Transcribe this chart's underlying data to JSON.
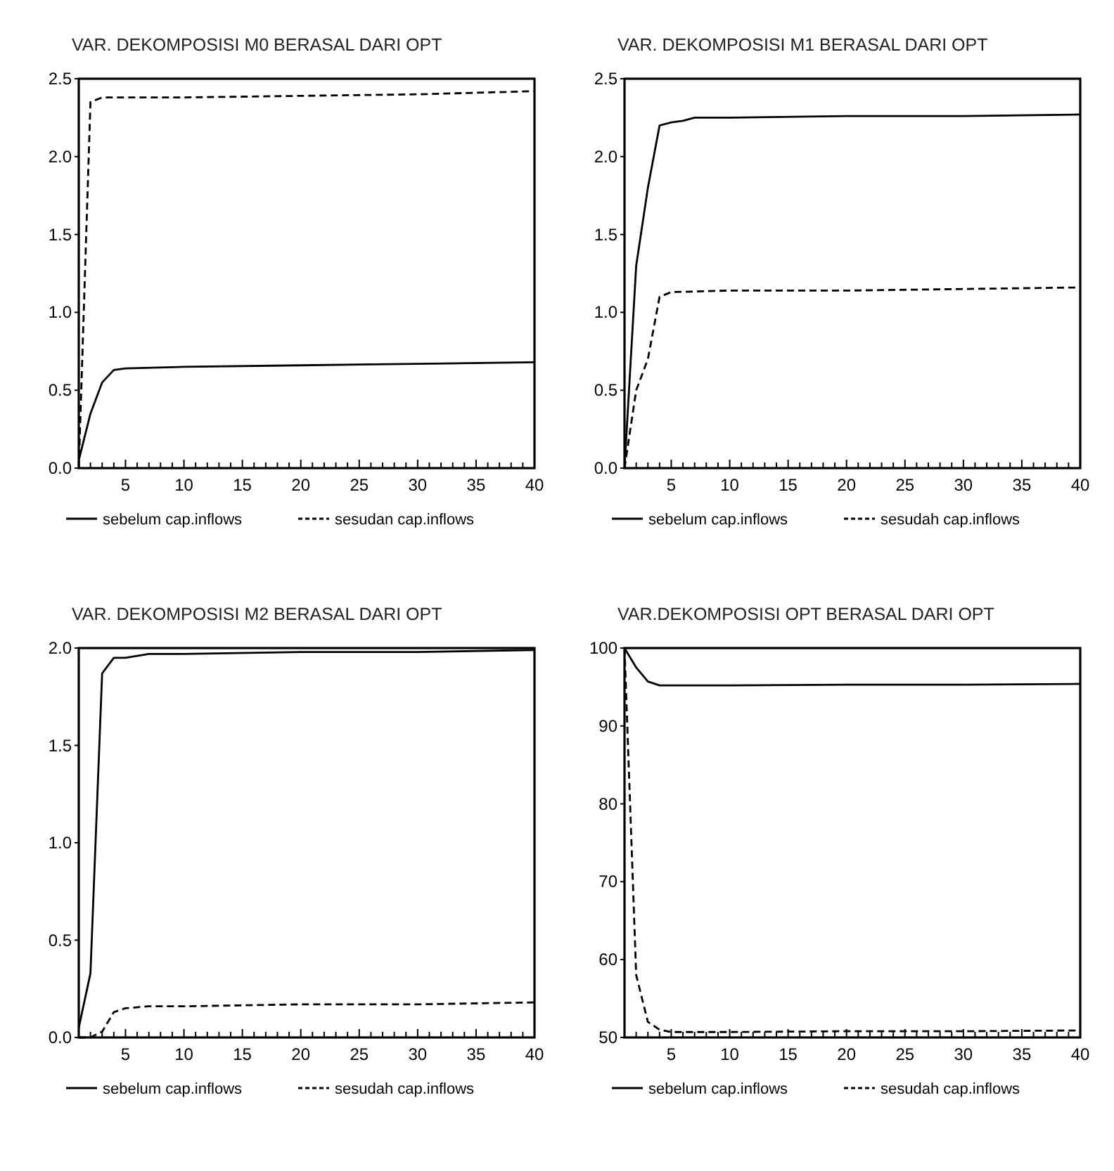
{
  "chart_data": [
    {
      "type": "line",
      "title": "VAR. DEKOMPOSISI M0 BERASAL DARI OPT",
      "xlim": [
        1,
        40
      ],
      "ylim": [
        0,
        2.5
      ],
      "yticks": [
        {
          "value": 0,
          "label": "0.0"
        },
        0.5,
        {
          "value": 1,
          "label": "1.0"
        },
        1.5,
        {
          "value": 2,
          "label": "2.0"
        },
        2.5
      ],
      "xticks": [
        {
          "value": 2,
          "label": null
        },
        {
          "value": 3,
          "label": null
        },
        {
          "value": 4,
          "label": null
        },
        5,
        {
          "value": 6,
          "label": null
        },
        {
          "value": 7,
          "label": null
        },
        {
          "value": 8,
          "label": null
        },
        {
          "value": 9,
          "label": null
        },
        10,
        {
          "value": 11,
          "label": null
        },
        {
          "value": 12,
          "label": null
        },
        {
          "value": 13,
          "label": null
        },
        {
          "value": 14,
          "label": null
        },
        15,
        {
          "value": 16,
          "label": null
        },
        {
          "value": 17,
          "label": null
        },
        {
          "value": 18,
          "label": null
        },
        {
          "value": 19,
          "label": null
        },
        20,
        {
          "value": 21,
          "label": null
        },
        {
          "value": 22,
          "label": null
        },
        {
          "value": 23,
          "label": null
        },
        {
          "value": 24,
          "label": null
        },
        25,
        {
          "value": 26,
          "label": null
        },
        {
          "value": 27,
          "label": null
        },
        {
          "value": 28,
          "label": null
        },
        {
          "value": 29,
          "label": null
        },
        30,
        {
          "value": 31,
          "label": null
        },
        {
          "value": 32,
          "label": null
        },
        {
          "value": 33,
          "label": null
        },
        {
          "value": 34,
          "label": null
        },
        35,
        {
          "value": 36,
          "label": null
        },
        {
          "value": 37,
          "label": null
        },
        {
          "value": 38,
          "label": null
        },
        {
          "value": 39,
          "label": null
        },
        40
      ],
      "legend": "bottom",
      "grid": false,
      "series": [
        {
          "name": "sebelum cap.inflows",
          "color": "#000000",
          "line_style": "solid",
          "x": [
            1,
            2,
            3,
            4,
            5,
            10,
            20,
            30,
            40
          ],
          "values": [
            0.05,
            0.35,
            0.55,
            0.63,
            0.64,
            0.65,
            0.66,
            0.67,
            0.68
          ]
        },
        {
          "name": "sesudan cap.inflows",
          "color": "#000000",
          "line_style": "dashed",
          "x": [
            1,
            2,
            3,
            4,
            5,
            10,
            20,
            30,
            40
          ],
          "values": [
            0,
            2.35,
            2.38,
            2.38,
            2.38,
            2.38,
            2.39,
            2.4,
            2.42
          ]
        }
      ]
    },
    {
      "type": "line",
      "title": "VAR. DEKOMPOSISI M1 BERASAL DARI OPT",
      "xlim": [
        1,
        40
      ],
      "ylim": [
        0,
        2.5
      ],
      "yticks": [
        {
          "value": 0,
          "label": "0.0"
        },
        0.5,
        {
          "value": 1,
          "label": "1.0"
        },
        1.5,
        {
          "value": 2,
          "label": "2.0"
        },
        2.5
      ],
      "xticks": [
        {
          "value": 2,
          "label": null
        },
        {
          "value": 3,
          "label": null
        },
        {
          "value": 4,
          "label": null
        },
        5,
        {
          "value": 6,
          "label": null
        },
        {
          "value": 7,
          "label": null
        },
        {
          "value": 8,
          "label": null
        },
        {
          "value": 9,
          "label": null
        },
        10,
        {
          "value": 11,
          "label": null
        },
        {
          "value": 12,
          "label": null
        },
        {
          "value": 13,
          "label": null
        },
        {
          "value": 14,
          "label": null
        },
        15,
        {
          "value": 16,
          "label": null
        },
        {
          "value": 17,
          "label": null
        },
        {
          "value": 18,
          "label": null
        },
        {
          "value": 19,
          "label": null
        },
        20,
        {
          "value": 21,
          "label": null
        },
        {
          "value": 22,
          "label": null
        },
        {
          "value": 23,
          "label": null
        },
        {
          "value": 24,
          "label": null
        },
        25,
        {
          "value": 26,
          "label": null
        },
        {
          "value": 27,
          "label": null
        },
        {
          "value": 28,
          "label": null
        },
        {
          "value": 29,
          "label": null
        },
        30,
        {
          "value": 31,
          "label": null
        },
        {
          "value": 32,
          "label": null
        },
        {
          "value": 33,
          "label": null
        },
        {
          "value": 34,
          "label": null
        },
        35,
        {
          "value": 36,
          "label": null
        },
        {
          "value": 37,
          "label": null
        },
        {
          "value": 38,
          "label": null
        },
        {
          "value": 39,
          "label": null
        },
        40
      ],
      "legend": "bottom",
      "grid": false,
      "series": [
        {
          "name": "sebelum cap.inflows",
          "color": "#000000",
          "line_style": "solid",
          "x": [
            1,
            2,
            3,
            4,
            5,
            6,
            7,
            10,
            20,
            30,
            40
          ],
          "values": [
            0,
            1.3,
            1.8,
            2.2,
            2.22,
            2.23,
            2.25,
            2.25,
            2.26,
            2.26,
            2.27
          ]
        },
        {
          "name": "sesudah cap.inflows",
          "color": "#000000",
          "line_style": "dashed",
          "x": [
            1,
            2,
            3,
            4,
            5,
            10,
            20,
            30,
            40
          ],
          "values": [
            0,
            0.5,
            0.7,
            1.1,
            1.13,
            1.14,
            1.14,
            1.15,
            1.16
          ]
        }
      ]
    },
    {
      "type": "line",
      "title": "VAR. DEKOMPOSISI M2 BERASAL DARI OPT",
      "xlim": [
        1,
        40
      ],
      "ylim": [
        0,
        2
      ],
      "yticks": [
        {
          "value": 0,
          "label": "0.0"
        },
        0.5,
        {
          "value": 1,
          "label": "1.0"
        },
        1.5,
        {
          "value": 2,
          "label": "2.0"
        }
      ],
      "xticks": [
        {
          "value": 2,
          "label": null
        },
        {
          "value": 3,
          "label": null
        },
        {
          "value": 4,
          "label": null
        },
        5,
        {
          "value": 6,
          "label": null
        },
        {
          "value": 7,
          "label": null
        },
        {
          "value": 8,
          "label": null
        },
        {
          "value": 9,
          "label": null
        },
        10,
        {
          "value": 11,
          "label": null
        },
        {
          "value": 12,
          "label": null
        },
        {
          "value": 13,
          "label": null
        },
        {
          "value": 14,
          "label": null
        },
        15,
        {
          "value": 16,
          "label": null
        },
        {
          "value": 17,
          "label": null
        },
        {
          "value": 18,
          "label": null
        },
        {
          "value": 19,
          "label": null
        },
        20,
        {
          "value": 21,
          "label": null
        },
        {
          "value": 22,
          "label": null
        },
        {
          "value": 23,
          "label": null
        },
        {
          "value": 24,
          "label": null
        },
        25,
        {
          "value": 26,
          "label": null
        },
        {
          "value": 27,
          "label": null
        },
        {
          "value": 28,
          "label": null
        },
        {
          "value": 29,
          "label": null
        },
        30,
        {
          "value": 31,
          "label": null
        },
        {
          "value": 32,
          "label": null
        },
        {
          "value": 33,
          "label": null
        },
        {
          "value": 34,
          "label": null
        },
        35,
        {
          "value": 36,
          "label": null
        },
        {
          "value": 37,
          "label": null
        },
        {
          "value": 38,
          "label": null
        },
        {
          "value": 39,
          "label": null
        },
        40
      ],
      "legend": "bottom",
      "grid": false,
      "series": [
        {
          "name": "sebelum cap.inflows",
          "color": "#000000",
          "line_style": "solid",
          "x": [
            1,
            2,
            3,
            4,
            5,
            7,
            10,
            20,
            30,
            40
          ],
          "values": [
            0.05,
            0.33,
            1.87,
            1.95,
            1.95,
            1.97,
            1.97,
            1.98,
            1.98,
            1.99
          ]
        },
        {
          "name": "sesudah cap.inflows",
          "color": "#000000",
          "line_style": "dashed",
          "x": [
            1,
            2,
            3,
            4,
            5,
            7,
            10,
            20,
            30,
            40
          ],
          "values": [
            0,
            0,
            0.03,
            0.13,
            0.15,
            0.16,
            0.16,
            0.17,
            0.17,
            0.18
          ]
        }
      ]
    },
    {
      "type": "line",
      "title": "VAR.DEKOMPOSISI OPT BERASAL DARI OPT",
      "xlim": [
        1,
        40
      ],
      "ylim": [
        50,
        100
      ],
      "yticks": [
        50,
        60,
        70,
        80,
        90,
        100
      ],
      "xticks": [
        {
          "value": 2,
          "label": null
        },
        {
          "value": 3,
          "label": null
        },
        {
          "value": 4,
          "label": null
        },
        5,
        {
          "value": 6,
          "label": null
        },
        {
          "value": 7,
          "label": null
        },
        {
          "value": 8,
          "label": null
        },
        {
          "value": 9,
          "label": null
        },
        10,
        {
          "value": 11,
          "label": null
        },
        {
          "value": 12,
          "label": null
        },
        {
          "value": 13,
          "label": null
        },
        {
          "value": 14,
          "label": null
        },
        15,
        {
          "value": 16,
          "label": null
        },
        {
          "value": 17,
          "label": null
        },
        {
          "value": 18,
          "label": null
        },
        {
          "value": 19,
          "label": null
        },
        20,
        {
          "value": 21,
          "label": null
        },
        {
          "value": 22,
          "label": null
        },
        {
          "value": 23,
          "label": null
        },
        {
          "value": 24,
          "label": null
        },
        25,
        {
          "value": 26,
          "label": null
        },
        {
          "value": 27,
          "label": null
        },
        {
          "value": 28,
          "label": null
        },
        {
          "value": 29,
          "label": null
        },
        30,
        {
          "value": 31,
          "label": null
        },
        {
          "value": 32,
          "label": null
        },
        {
          "value": 33,
          "label": null
        },
        {
          "value": 34,
          "label": null
        },
        35,
        {
          "value": 36,
          "label": null
        },
        {
          "value": 37,
          "label": null
        },
        {
          "value": 38,
          "label": null
        },
        {
          "value": 39,
          "label": null
        },
        40
      ],
      "legend": "bottom",
      "grid": false,
      "series": [
        {
          "name": "sebelum cap.inflows",
          "color": "#000000",
          "line_style": "solid",
          "x": [
            1,
            2,
            3,
            4,
            5,
            10,
            20,
            30,
            40
          ],
          "values": [
            100,
            97.5,
            95.7,
            95.2,
            95.2,
            95.2,
            95.3,
            95.3,
            95.4
          ]
        },
        {
          "name": "sesudah cap.inflows",
          "color": "#000000",
          "line_style": "dashed",
          "x": [
            1,
            2,
            3,
            4,
            5,
            10,
            20,
            30,
            40
          ],
          "values": [
            100,
            58,
            52,
            51,
            50.7,
            50.7,
            50.8,
            50.8,
            50.9
          ]
        }
      ]
    }
  ]
}
